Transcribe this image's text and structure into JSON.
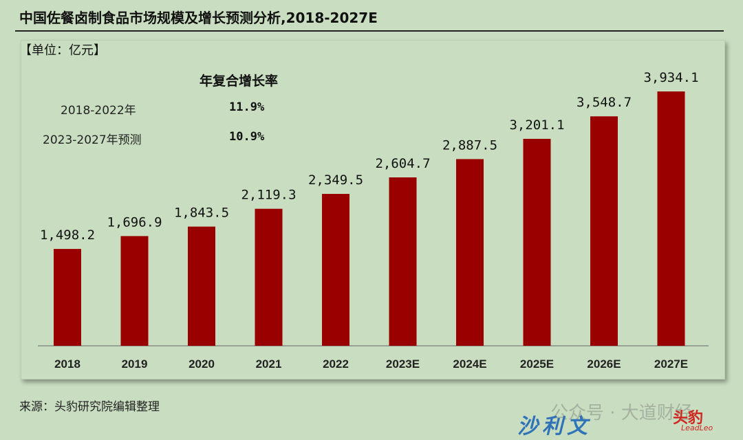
{
  "title": "中国佐餐卤制食品市场规模及增长预测分析,2018-2027E",
  "unit_label": "【单位：亿元】",
  "cagr": {
    "heading": "年复合增长率",
    "rows": [
      {
        "period": "2018-2022年",
        "rate": "11.9%"
      },
      {
        "period": "2023-2027年预测",
        "rate": "10.9%"
      }
    ]
  },
  "source": "来源：头豹研究院编辑整理",
  "watermark": "公众号 · 大道财经",
  "logos": {
    "shaliwen": "沙利文",
    "toubao": "头豹",
    "toubao_sub": "LeadLeo"
  },
  "colors": {
    "bar": "#990000",
    "background": "#c9dec1"
  },
  "chart_data": {
    "type": "bar",
    "categories": [
      "2018",
      "2019",
      "2020",
      "2021",
      "2022",
      "2023E",
      "2024E",
      "2025E",
      "2026E",
      "2027E"
    ],
    "values": [
      1498.2,
      1696.9,
      1843.5,
      2119.3,
      2349.5,
      2604.7,
      2887.5,
      3201.1,
      3548.7,
      3934.1
    ],
    "value_labels": [
      "1,498.2",
      "1,696.9",
      "1,843.5",
      "2,119.3",
      "2,349.5",
      "2,604.7",
      "2,887.5",
      "3,201.1",
      "3,548.7",
      "3,934.1"
    ],
    "ylim": [
      0,
      3934.1
    ],
    "grid": false,
    "legend": "none"
  }
}
